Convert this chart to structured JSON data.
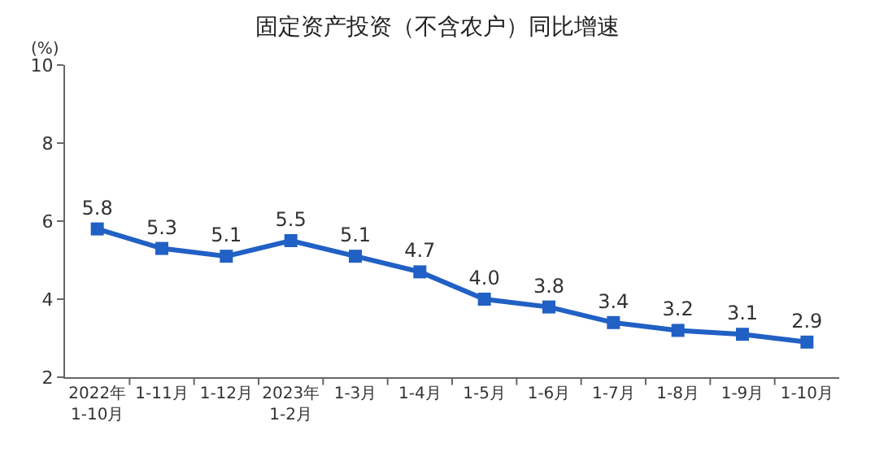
{
  "chart_data": {
    "type": "line",
    "title": "固定资产投资（不含农户）同比增速",
    "ylabel": "(%)",
    "categories": [
      "2022年\n1-10月",
      "1-11月",
      "1-12月",
      "2023年\n1-2月",
      "1-3月",
      "1-4月",
      "1-5月",
      "1-6月",
      "1-7月",
      "1-8月",
      "1-9月",
      "1-10月"
    ],
    "series": [
      {
        "color": "#2160c4",
        "values": [
          5.8,
          5.3,
          5.1,
          5.5,
          5.1,
          4.7,
          4.0,
          3.8,
          3.4,
          3.2,
          3.1,
          2.9
        ],
        "value_labels": [
          "5.8",
          "5.3",
          "5.1",
          "5.5",
          "5.1",
          "4.7",
          "4.0",
          "3.8",
          "3.4",
          "3.2",
          "3.1",
          "2.9"
        ]
      }
    ],
    "ylim": [
      2,
      10
    ],
    "yticks": [
      2,
      4,
      6,
      8,
      10
    ],
    "grid": false,
    "marker": "square",
    "line_style": "solid"
  }
}
